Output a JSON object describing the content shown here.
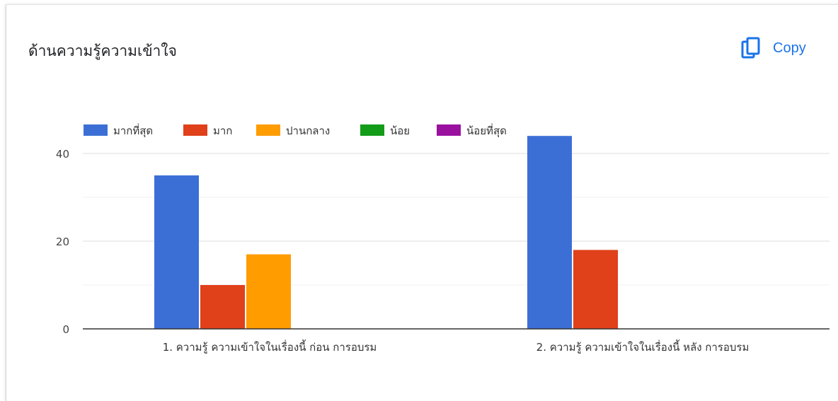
{
  "card": {
    "title": "ด้านความรู้ความเข้าใจ",
    "copy_label": "Copy",
    "copy_icon": "copy-icon",
    "accent_color": "#1a73e8"
  },
  "chart_data": {
    "type": "bar",
    "title": "",
    "xlabel": "",
    "ylabel": "",
    "categories": [
      "1. ความรู้ ความเข้าใจในเรื่องนี้ ก่อน การอบรม",
      "2. ความรู้ ความเข้าใจในเรื่องนี้ หลัง การอบรม"
    ],
    "series": [
      {
        "name": "มากที่สุด",
        "color": "#3c6fd6",
        "values": [
          35,
          44
        ]
      },
      {
        "name": "มาก",
        "color": "#e0401a",
        "values": [
          10,
          18
        ]
      },
      {
        "name": "ปานกลาง",
        "color": "#ff9c00",
        "values": [
          17,
          0
        ]
      },
      {
        "name": "น้อย",
        "color": "#129c18",
        "values": [
          0,
          0
        ]
      },
      {
        "name": "น้อยที่สุด",
        "color": "#9a11a0",
        "values": [
          0,
          0
        ]
      }
    ],
    "ylim": [
      0,
      47
    ],
    "yticks": [
      0,
      20,
      40
    ],
    "grid": true,
    "legend_position": "top-left"
  }
}
